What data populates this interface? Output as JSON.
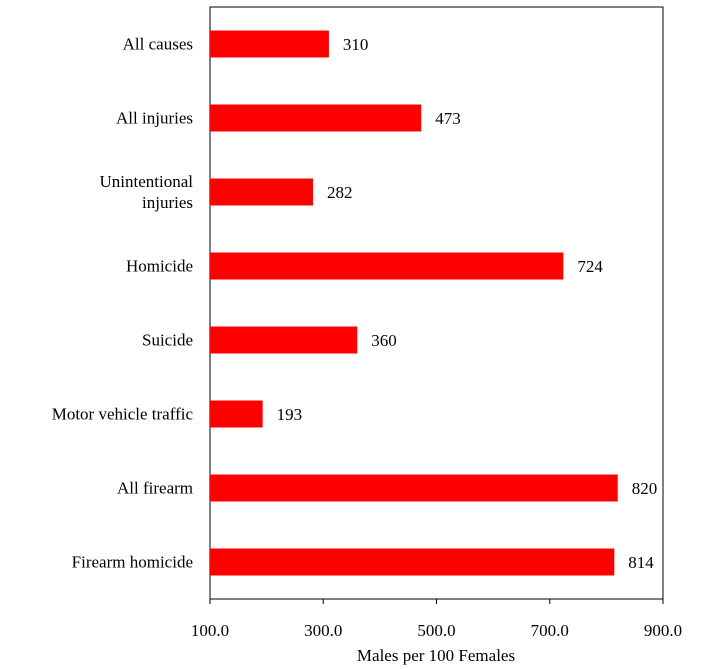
{
  "chart_data": {
    "type": "bar",
    "orientation": "horizontal",
    "categories": [
      "All causes",
      "All injuries",
      "Unintentional\ninjuries",
      "Homicide",
      "Suicide",
      "Motor vehicle traffic",
      "All firearm",
      "Firearm homicide"
    ],
    "values": [
      310,
      473,
      282,
      724,
      360,
      193,
      820,
      814
    ],
    "color": "#ff0000",
    "xlabel": "Males per 100 Females",
    "xlim": [
      100,
      900
    ],
    "xticks": [
      {
        "value": 100,
        "label": "100.0"
      },
      {
        "value": 300,
        "label": "300.0"
      },
      {
        "value": 500,
        "label": "500.0"
      },
      {
        "value": 700,
        "label": "700.0"
      },
      {
        "value": 900,
        "label": "900.0"
      }
    ],
    "grid": false
  }
}
